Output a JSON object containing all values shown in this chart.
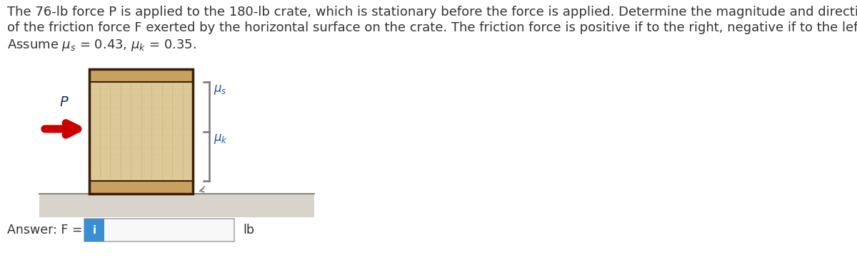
{
  "title_line1": "The 76-lb force P is applied to the 180-lb crate, which is stationary before the force is applied. Determine the magnitude and direction",
  "title_line2": "of the friction force F exerted by the horizontal surface on the crate. The friction force is positive if to the right, negative if to the left.",
  "title_line3": "Assume $\\mu_s$ = 0.43, $\\mu_k$ = 0.35.",
  "bg_color": "#ffffff",
  "text_color": "#333333",
  "crate_face_color": "#ddc898",
  "crate_trim_color": "#c8a060",
  "crate_edge_color": "#3a2008",
  "crate_grain_color": "#cdb87a",
  "ground_top_color": "#c8c4bc",
  "ground_bot_color": "#e8e4dc",
  "arrow_color": "#cc0000",
  "brace_color": "#777777",
  "mu_color": "#2255bb",
  "input_border_color": "#aaaaaa",
  "input_bg_color": "#f8f8f8",
  "blue_btn_color": "#3a8fd4",
  "font_size_title": 13.0,
  "font_size_answer": 12.5,
  "font_size_P": 13,
  "font_size_mu": 11
}
